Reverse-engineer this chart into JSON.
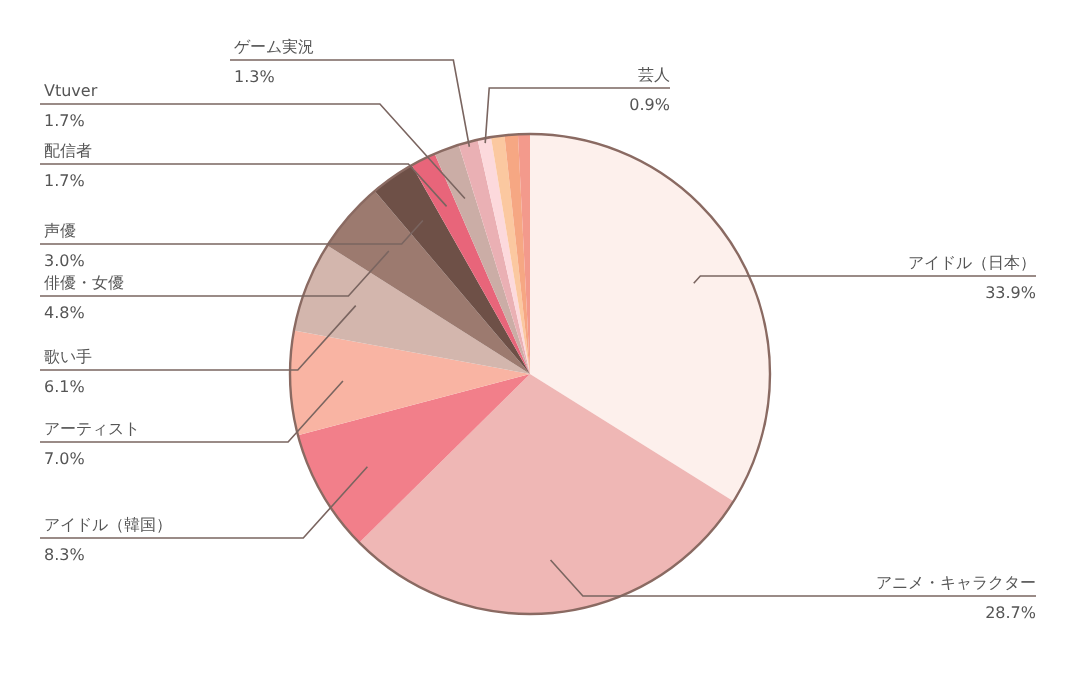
{
  "chart_data": {
    "type": "pie",
    "categories": [
      "アイドル（日本）",
      "アニメ・キャラクター",
      "アイドル（韓国）",
      "アーティスト",
      "歌い手",
      "俳優・女優",
      "声優",
      "配信者",
      "Vtuver",
      "ゲーム実況",
      "芸人",
      null,
      null,
      null
    ],
    "values": [
      33.9,
      28.7,
      8.3,
      7.0,
      6.1,
      4.8,
      3.0,
      1.7,
      1.7,
      1.3,
      0.9,
      0.9,
      0.9,
      0.8
    ],
    "value_labels": [
      "33.9%",
      "28.7%",
      "8.3%",
      "7.0%",
      "6.1%",
      "4.8%",
      "3.0%",
      "1.7%",
      "1.7%",
      "1.3%",
      "0.9%",
      null,
      null,
      null
    ],
    "colors": [
      "#fdf0ec",
      "#efb7b5",
      "#f27f8a",
      "#f9b4a3",
      "#d3b6ad",
      "#9c7a6f",
      "#6e5047",
      "#e8657a",
      "#cbada6",
      "#eab0b4",
      "#fcd9dc",
      "#fbc8a0",
      "#f6a783",
      "#f39a8c"
    ],
    "legend": false
  }
}
